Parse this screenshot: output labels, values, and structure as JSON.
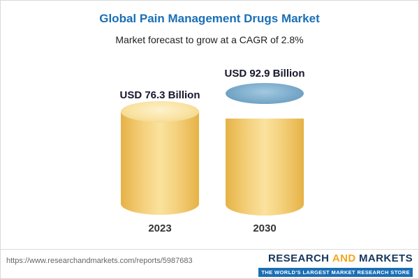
{
  "header": {
    "title": "Global Pain Management Drugs Market",
    "subtitle": "Market forecast to grow at a CAGR of 2.8%"
  },
  "chart_data": {
    "type": "bar",
    "title": "Global Pain Management Drugs Market",
    "subtitle": "Market forecast to grow at a CAGR of 2.8%",
    "categories": [
      "2023",
      "2030"
    ],
    "values": [
      76.3,
      92.9
    ],
    "value_labels": [
      "USD 76.3 Billion",
      "USD 92.9 Billion"
    ],
    "unit": "USD Billion",
    "cagr": "2.8%",
    "legend": "none",
    "grid": false,
    "colors": {
      "base_fill": "#f4d07c",
      "growth_fill": "#6ba2c6",
      "title_blue": "#1a6fb5"
    }
  },
  "footer": {
    "url": "https://www.researchandmarkets.com/reports/5987683",
    "logo": {
      "research": "RESEARCH",
      "and": "AND",
      "markets": "MARKETS",
      "tagline": "THE WORLD'S LARGEST MARKET RESEARCH STORE"
    }
  }
}
